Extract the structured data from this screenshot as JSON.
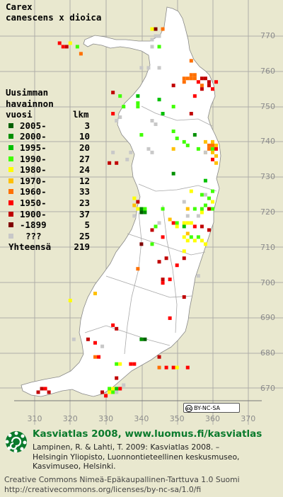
{
  "species": {
    "line1": "Carex",
    "line2": "canescens x dioica"
  },
  "legend": {
    "header_line1": "Uusimman",
    "header_line2": "havainnon",
    "header_line3_left": "vuosi",
    "header_line3_right": "lkm",
    "items": [
      {
        "label": "2005-",
        "count": "3",
        "color": "#006000"
      },
      {
        "label": "2000-",
        "count": "10",
        "color": "#009000"
      },
      {
        "label": "1995-",
        "count": "20",
        "color": "#00c000"
      },
      {
        "label": "1990-",
        "count": "27",
        "color": "#40ff00"
      },
      {
        "label": "1980-",
        "count": "24",
        "color": "#ffff00"
      },
      {
        "label": "1970-",
        "count": "12",
        "color": "#ffc000"
      },
      {
        "label": "1960-",
        "count": "33",
        "color": "#ff7000"
      },
      {
        "label": "1950-",
        "count": "23",
        "color": "#ff0000"
      },
      {
        "label": "1900-",
        "count": "37",
        "color": "#c00000"
      },
      {
        "label": "-1899",
        "count": "5",
        "color": "#800000"
      },
      {
        "label": "???",
        "count": "25",
        "color": "#c8c8c8"
      }
    ],
    "total_label": "Yhteensä",
    "total_count": "219"
  },
  "axes": {
    "east_ticks": [
      "310",
      "320",
      "330",
      "340",
      "350",
      "360",
      "370"
    ],
    "north_ticks": [
      "770",
      "760",
      "750",
      "740",
      "730",
      "720",
      "710",
      "700",
      "690",
      "680",
      "670"
    ]
  },
  "cc_badge": {
    "circle": "cc",
    "text": "BY-NC-SA"
  },
  "footer": {
    "title": "Kasviatlas 2008, www.luomus.fi/kasviatlas",
    "citation_line1": "Lampinen, R. & Lahti, T. 2009: Kasviatlas 2008. –",
    "citation_line2": "Helsingin Yliopisto, Luonnontieteellinen keskusmuseo,",
    "citation_line3": "Kasvimuseo, Helsinki.",
    "license_line1": "Creative Commons Nimeä-Epäkaupallinen-Tarttuva 1.0 Suomi",
    "license_line2": "http://creativecommons.org/licenses/by-nc-sa/1.0/fi"
  },
  "colors": {
    "background": "#e9e8cf",
    "land": "#ffffff",
    "grid": "#a0a0a0",
    "border": "#9a9a9a",
    "logo_green": "#0a7a2c"
  },
  "observations": [
    {
      "e": 343,
      "n": 772,
      "c": 4
    },
    {
      "e": 344,
      "n": 772,
      "c": 9
    },
    {
      "e": 346,
      "n": 772,
      "c": 6
    },
    {
      "e": 344,
      "n": 770,
      "c": 10
    },
    {
      "e": 345,
      "n": 770,
      "c": 10
    },
    {
      "e": 343,
      "n": 769,
      "c": 10
    },
    {
      "e": 345,
      "n": 767,
      "c": 3
    },
    {
      "e": 343,
      "n": 767,
      "c": 10
    },
    {
      "e": 317,
      "n": 768,
      "c": 7
    },
    {
      "e": 318,
      "n": 767,
      "c": 7
    },
    {
      "e": 319,
      "n": 767,
      "c": 8
    },
    {
      "e": 320,
      "n": 768,
      "c": 4
    },
    {
      "e": 322,
      "n": 767,
      "c": 3
    },
    {
      "e": 323,
      "n": 765,
      "c": 6
    },
    {
      "e": 354,
      "n": 763,
      "c": 6
    },
    {
      "e": 352,
      "n": 758,
      "c": 6
    },
    {
      "e": 353,
      "n": 758,
      "c": 6
    },
    {
      "e": 354,
      "n": 759,
      "c": 6
    },
    {
      "e": 355,
      "n": 759,
      "c": 6
    },
    {
      "e": 354,
      "n": 758,
      "c": 6
    },
    {
      "e": 355,
      "n": 758,
      "c": 6
    },
    {
      "e": 352,
      "n": 757,
      "c": 6
    },
    {
      "e": 357,
      "n": 758,
      "c": 8
    },
    {
      "e": 358,
      "n": 758,
      "c": 8
    },
    {
      "e": 356,
      "n": 757,
      "c": 7
    },
    {
      "e": 359,
      "n": 757,
      "c": 8
    },
    {
      "e": 361,
      "n": 757,
      "c": 7
    },
    {
      "e": 357,
      "n": 756,
      "c": 6
    },
    {
      "e": 359,
      "n": 756,
      "c": 8
    },
    {
      "e": 357,
      "n": 755,
      "c": 8
    },
    {
      "e": 360,
      "n": 755,
      "c": 7
    },
    {
      "e": 349,
      "n": 756,
      "c": 8
    },
    {
      "e": 340,
      "n": 761,
      "c": 10
    },
    {
      "e": 332,
      "n": 754,
      "c": 8
    },
    {
      "e": 334,
      "n": 753,
      "c": 3
    },
    {
      "e": 339,
      "n": 753,
      "c": 2
    },
    {
      "e": 339,
      "n": 751,
      "c": 3
    },
    {
      "e": 335,
      "n": 750,
      "c": 3
    },
    {
      "e": 339,
      "n": 750,
      "c": 3
    },
    {
      "e": 345,
      "n": 752,
      "c": 2
    },
    {
      "e": 349,
      "n": 750,
      "c": 3
    },
    {
      "e": 355,
      "n": 753,
      "c": 7
    },
    {
      "e": 354,
      "n": 748,
      "c": 8
    },
    {
      "e": 346,
      "n": 748,
      "c": 2
    },
    {
      "e": 332,
      "n": 748,
      "c": 7
    },
    {
      "e": 334,
      "n": 747,
      "c": 10
    },
    {
      "e": 333,
      "n": 746,
      "c": 10
    },
    {
      "e": 344,
      "n": 745,
      "c": 10
    },
    {
      "e": 349,
      "n": 743,
      "c": 3
    },
    {
      "e": 350,
      "n": 741,
      "c": 3
    },
    {
      "e": 352,
      "n": 740,
      "c": 3
    },
    {
      "e": 353,
      "n": 739,
      "c": 3
    },
    {
      "e": 355,
      "n": 742,
      "c": 1
    },
    {
      "e": 358,
      "n": 740,
      "c": 5
    },
    {
      "e": 360,
      "n": 740,
      "c": 5
    },
    {
      "e": 359,
      "n": 739,
      "c": 6
    },
    {
      "e": 360,
      "n": 739,
      "c": 6
    },
    {
      "e": 361,
      "n": 739,
      "c": 5
    },
    {
      "e": 359,
      "n": 738,
      "c": 6
    },
    {
      "e": 360,
      "n": 738,
      "c": 3
    },
    {
      "e": 361,
      "n": 738,
      "c": 7
    },
    {
      "e": 358,
      "n": 737,
      "c": 5
    },
    {
      "e": 360,
      "n": 737,
      "c": 5
    },
    {
      "e": 361,
      "n": 736,
      "c": 5
    },
    {
      "e": 360,
      "n": 735,
      "c": 7
    },
    {
      "e": 361,
      "n": 734,
      "c": 5
    },
    {
      "e": 356,
      "n": 738,
      "c": 3
    },
    {
      "e": 332,
      "n": 737,
      "c": 10
    },
    {
      "e": 333,
      "n": 734,
      "c": 8
    },
    {
      "e": 349,
      "n": 731,
      "c": 1
    },
    {
      "e": 358,
      "n": 729,
      "c": 2
    },
    {
      "e": 360,
      "n": 726,
      "c": 3
    },
    {
      "e": 357,
      "n": 725,
      "c": 3
    },
    {
      "e": 354,
      "n": 726,
      "c": 4
    },
    {
      "e": 359,
      "n": 724,
      "c": 3
    },
    {
      "e": 360,
      "n": 723,
      "c": 4
    },
    {
      "e": 358,
      "n": 722,
      "c": 3
    },
    {
      "e": 359,
      "n": 721,
      "c": 8
    },
    {
      "e": 357,
      "n": 721,
      "c": 3
    },
    {
      "e": 360,
      "n": 721,
      "c": 3
    },
    {
      "e": 357,
      "n": 720,
      "c": 4
    },
    {
      "e": 355,
      "n": 721,
      "c": 3
    },
    {
      "e": 353,
      "n": 721,
      "c": 5
    },
    {
      "e": 338,
      "n": 724,
      "c": 4
    },
    {
      "e": 339,
      "n": 723,
      "c": 8
    },
    {
      "e": 338,
      "n": 722,
      "c": 5
    },
    {
      "e": 339,
      "n": 721,
      "c": 4
    },
    {
      "e": 340,
      "n": 721,
      "c": 1
    },
    {
      "e": 341,
      "n": 721,
      "c": 3
    },
    {
      "e": 340,
      "n": 720,
      "c": 0
    },
    {
      "e": 341,
      "n": 720,
      "c": 1
    },
    {
      "e": 338,
      "n": 719,
      "c": 10
    },
    {
      "e": 352,
      "n": 723,
      "c": 10
    },
    {
      "e": 353,
      "n": 719,
      "c": 10
    },
    {
      "e": 356,
      "n": 719,
      "c": 10
    },
    {
      "e": 348,
      "n": 718,
      "c": 5
    },
    {
      "e": 349,
      "n": 717,
      "c": 7
    },
    {
      "e": 350,
      "n": 717,
      "c": 3
    },
    {
      "e": 352,
      "n": 717,
      "c": 4
    },
    {
      "e": 353,
      "n": 717,
      "c": 4
    },
    {
      "e": 354,
      "n": 717,
      "c": 4
    },
    {
      "e": 350,
      "n": 716,
      "c": 4
    },
    {
      "e": 352,
      "n": 716,
      "c": 2
    },
    {
      "e": 355,
      "n": 716,
      "c": 7
    },
    {
      "e": 357,
      "n": 716,
      "c": 8
    },
    {
      "e": 359,
      "n": 715,
      "c": 8
    },
    {
      "e": 353,
      "n": 714,
      "c": 5
    },
    {
      "e": 352,
      "n": 713,
      "c": 4
    },
    {
      "e": 354,
      "n": 713,
      "c": 3
    },
    {
      "e": 356,
      "n": 713,
      "c": 3
    },
    {
      "e": 355,
      "n": 712,
      "c": 4
    },
    {
      "e": 357,
      "n": 712,
      "c": 4
    },
    {
      "e": 353,
      "n": 712,
      "c": 4
    },
    {
      "e": 358,
      "n": 711,
      "c": 4
    },
    {
      "e": 344,
      "n": 716,
      "c": 3
    },
    {
      "e": 345,
      "n": 717,
      "c": 10
    },
    {
      "e": 343,
      "n": 715,
      "c": 8
    },
    {
      "e": 346,
      "n": 713,
      "c": 7
    },
    {
      "e": 352,
      "n": 707,
      "c": 8
    },
    {
      "e": 343,
      "n": 711,
      "c": 3
    },
    {
      "e": 347,
      "n": 707,
      "c": 8
    },
    {
      "e": 345,
      "n": 706,
      "c": 8
    },
    {
      "e": 339,
      "n": 704,
      "c": 6
    },
    {
      "e": 350,
      "n": 705,
      "c": 7
    },
    {
      "e": 346,
      "n": 701,
      "c": 8
    },
    {
      "e": 348,
      "n": 701,
      "c": 7
    },
    {
      "e": 346,
      "n": 700,
      "c": 7
    },
    {
      "e": 356,
      "n": 702,
      "c": 10
    },
    {
      "e": 327,
      "n": 697,
      "c": 5
    },
    {
      "e": 320,
      "n": 695,
      "c": 4
    },
    {
      "e": 352,
      "n": 696,
      "c": 8
    },
    {
      "e": 348,
      "n": 690,
      "c": 7
    },
    {
      "e": 332,
      "n": 688,
      "c": 7
    },
    {
      "e": 333,
      "n": 687,
      "c": 8
    },
    {
      "e": 340,
      "n": 684,
      "c": 1
    },
    {
      "e": 341,
      "n": 684,
      "c": 0
    },
    {
      "e": 325,
      "n": 684,
      "c": 8
    },
    {
      "e": 327,
      "n": 683,
      "c": 7
    },
    {
      "e": 321,
      "n": 684,
      "c": 10
    },
    {
      "e": 329,
      "n": 682,
      "c": 10
    },
    {
      "e": 327,
      "n": 679,
      "c": 6
    },
    {
      "e": 328,
      "n": 679,
      "c": 7
    },
    {
      "e": 333,
      "n": 677,
      "c": 3
    },
    {
      "e": 334,
      "n": 677,
      "c": 4
    },
    {
      "e": 337,
      "n": 677,
      "c": 7
    },
    {
      "e": 338,
      "n": 677,
      "c": 7
    },
    {
      "e": 333,
      "n": 673,
      "c": 8
    },
    {
      "e": 331,
      "n": 670,
      "c": 3
    },
    {
      "e": 332,
      "n": 670,
      "c": 4
    },
    {
      "e": 333,
      "n": 670,
      "c": 2
    },
    {
      "e": 334,
      "n": 670,
      "c": 7
    },
    {
      "e": 331,
      "n": 669,
      "c": 4
    },
    {
      "e": 332,
      "n": 669,
      "c": 3
    },
    {
      "e": 333,
      "n": 669,
      "c": 10
    },
    {
      "e": 330,
      "n": 668,
      "c": 7
    },
    {
      "e": 329,
      "n": 669,
      "c": 8
    },
    {
      "e": 335,
      "n": 671,
      "c": 10
    },
    {
      "e": 345,
      "n": 676,
      "c": 6
    },
    {
      "e": 347,
      "n": 676,
      "c": 7
    },
    {
      "e": 349,
      "n": 676,
      "c": 7
    },
    {
      "e": 350,
      "n": 676,
      "c": 4
    },
    {
      "e": 353,
      "n": 676,
      "c": 7
    },
    {
      "e": 345,
      "n": 679,
      "c": 8
    },
    {
      "e": 312,
      "n": 670,
      "c": 8
    },
    {
      "e": 313,
      "n": 670,
      "c": 7
    },
    {
      "e": 314,
      "n": 669,
      "c": 8
    },
    {
      "e": 311,
      "n": 669,
      "c": 8
    },
    {
      "e": 358,
      "n": 737,
      "c": 10
    },
    {
      "e": 343,
      "n": 746,
      "c": 10
    },
    {
      "e": 342,
      "n": 738,
      "c": 10
    },
    {
      "e": 337,
      "n": 737,
      "c": 10
    },
    {
      "e": 336,
      "n": 735,
      "c": 10
    },
    {
      "e": 343,
      "n": 737,
      "c": 10
    },
    {
      "e": 358,
      "n": 725,
      "c": 10
    },
    {
      "e": 346,
      "n": 721,
      "c": 3
    },
    {
      "e": 331,
      "n": 734,
      "c": 8
    },
    {
      "e": 349,
      "n": 738,
      "c": 5
    },
    {
      "e": 340,
      "n": 742,
      "c": 3
    },
    {
      "e": 342,
      "n": 761,
      "c": 10
    },
    {
      "e": 345,
      "n": 761,
      "c": 10
    },
    {
      "e": 352,
      "n": 709,
      "c": 4
    },
    {
      "e": 340,
      "n": 711,
      "c": 9
    }
  ]
}
